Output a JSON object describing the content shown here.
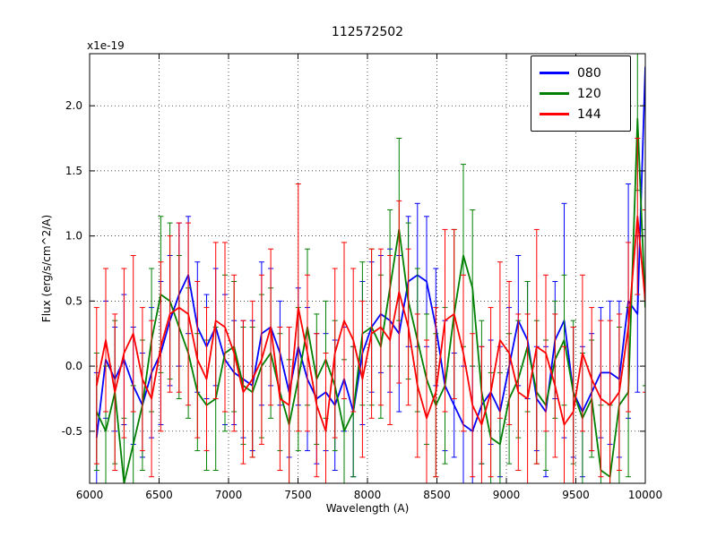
{
  "chart": {
    "title": "112572502",
    "offset_label": "x1e-19",
    "xlabel": "Wavelength (A)",
    "ylabel": "Flux (erg/s/cm^2/A)"
  },
  "chart_data": {
    "type": "line",
    "error_bars": true,
    "title": "112572502",
    "xlabel": "Wavelength (A)",
    "ylabel": "Flux (erg/s/cm^2/A)",
    "y_offset_factor": "x1e-19",
    "grid": true,
    "legend_position": "upper right",
    "xlim": [
      6000,
      10000
    ],
    "ylim": [
      -0.9,
      2.4
    ],
    "x_ticks": [
      6000,
      6500,
      7000,
      7500,
      8000,
      8500,
      9000,
      9500,
      10000
    ],
    "x_tick_labels": [
      "6000",
      "6500",
      "7000",
      "7500",
      "8000",
      "8500",
      "9000",
      "9500",
      "10000"
    ],
    "y_ticks": [
      -0.5,
      0.0,
      0.5,
      1.0,
      1.5,
      2.0
    ],
    "y_tick_labels": [
      "-0.5",
      "0.0",
      "0.5",
      "1.0",
      "1.5",
      "2.0"
    ],
    "x": [
      6050,
      6116,
      6182,
      6248,
      6314,
      6380,
      6446,
      6512,
      6578,
      6644,
      6710,
      6776,
      6842,
      6908,
      6974,
      7040,
      7106,
      7172,
      7238,
      7304,
      7370,
      7436,
      7502,
      7568,
      7634,
      7700,
      7766,
      7832,
      7898,
      7964,
      8030,
      8096,
      8162,
      8228,
      8294,
      8360,
      8426,
      8492,
      8558,
      8624,
      8690,
      8756,
      8822,
      8888,
      8954,
      9020,
      9086,
      9152,
      9218,
      9284,
      9350,
      9416,
      9482,
      9548,
      9614,
      9680,
      9746,
      9812,
      9878,
      9944,
      10000
    ],
    "series": [
      {
        "name": "080",
        "color": "#0000ff",
        "values": [
          -0.55,
          0.05,
          -0.1,
          0.05,
          -0.15,
          -0.3,
          -0.05,
          0.1,
          0.35,
          0.55,
          0.7,
          0.3,
          0.15,
          0.3,
          0.05,
          -0.05,
          -0.1,
          -0.15,
          0.25,
          0.3,
          0.1,
          -0.2,
          0.15,
          -0.1,
          -0.25,
          -0.2,
          -0.3,
          -0.1,
          -0.35,
          0.1,
          0.3,
          0.4,
          0.35,
          0.25,
          0.65,
          0.7,
          0.65,
          0.3,
          -0.15,
          -0.3,
          -0.45,
          -0.5,
          -0.3,
          -0.2,
          -0.35,
          0.0,
          0.35,
          0.2,
          -0.25,
          -0.35,
          0.2,
          0.35,
          -0.2,
          -0.35,
          -0.2,
          -0.05,
          -0.05,
          -0.1,
          0.5,
          0.4,
          2.3
        ],
        "errors": [
          0.5,
          0.45,
          0.4,
          0.5,
          0.45,
          0.4,
          0.5,
          0.55,
          0.5,
          0.55,
          0.45,
          0.5,
          0.4,
          0.45,
          0.5,
          0.4,
          0.45,
          0.5,
          0.55,
          0.45,
          0.4,
          0.5,
          0.45,
          0.55,
          0.5,
          0.45,
          0.5,
          0.4,
          0.5,
          0.55,
          0.5,
          0.45,
          0.55,
          0.6,
          0.5,
          0.55,
          0.5,
          0.45,
          0.5,
          0.4,
          0.45,
          0.5,
          0.45,
          0.4,
          0.5,
          0.45,
          0.5,
          0.45,
          0.4,
          0.5,
          0.45,
          0.9,
          0.5,
          0.5,
          0.45,
          0.5,
          0.55,
          0.6,
          0.9,
          0.6,
          0.8
        ]
      },
      {
        "name": "120",
        "color": "#008000",
        "values": [
          -0.35,
          -0.5,
          -0.2,
          -0.9,
          -0.6,
          -0.3,
          0.2,
          0.55,
          0.5,
          0.3,
          0.1,
          -0.2,
          -0.3,
          -0.25,
          0.1,
          0.15,
          -0.15,
          -0.2,
          0.0,
          0.1,
          -0.2,
          -0.45,
          -0.1,
          0.3,
          -0.1,
          0.05,
          -0.15,
          -0.5,
          -0.35,
          0.25,
          0.3,
          0.15,
          0.6,
          1.05,
          0.5,
          0.2,
          -0.1,
          -0.3,
          -0.15,
          0.4,
          0.85,
          0.6,
          -0.2,
          -0.55,
          -0.6,
          -0.25,
          -0.1,
          0.15,
          -0.2,
          -0.3,
          0.05,
          0.2,
          -0.2,
          -0.4,
          -0.25,
          -0.8,
          -0.85,
          -0.3,
          -0.2,
          1.9,
          0.45
        ],
        "errors": [
          0.45,
          0.5,
          0.55,
          0.5,
          0.45,
          0.5,
          0.55,
          0.6,
          0.6,
          0.55,
          0.5,
          0.45,
          0.5,
          0.55,
          0.6,
          0.5,
          0.45,
          0.5,
          0.55,
          0.5,
          0.45,
          0.5,
          0.55,
          0.6,
          0.5,
          0.45,
          0.5,
          0.55,
          0.5,
          0.55,
          0.6,
          0.55,
          0.6,
          0.7,
          0.6,
          0.55,
          0.5,
          0.55,
          0.6,
          0.65,
          0.7,
          0.6,
          0.55,
          0.5,
          0.55,
          0.5,
          0.45,
          0.5,
          0.55,
          0.5,
          0.45,
          0.5,
          0.55,
          0.5,
          0.45,
          0.5,
          0.55,
          0.6,
          0.65,
          0.55,
          0.6
        ]
      },
      {
        "name": "144",
        "color": "#ff0000",
        "values": [
          -0.15,
          0.2,
          -0.2,
          0.1,
          0.25,
          -0.1,
          -0.25,
          0.15,
          0.4,
          0.45,
          0.4,
          0.05,
          -0.1,
          0.35,
          0.3,
          0.1,
          -0.2,
          -0.1,
          0.05,
          0.3,
          -0.25,
          -0.3,
          0.45,
          0.1,
          -0.3,
          -0.5,
          0.1,
          0.35,
          0.2,
          -0.1,
          0.25,
          0.3,
          0.2,
          0.57,
          0.3,
          -0.15,
          -0.4,
          -0.2,
          0.35,
          0.4,
          0.1,
          -0.3,
          -0.45,
          -0.2,
          0.2,
          0.1,
          -0.2,
          -0.25,
          0.15,
          0.1,
          -0.15,
          -0.45,
          -0.35,
          0.1,
          -0.1,
          -0.25,
          -0.3,
          -0.2,
          0.3,
          1.15,
          0.5
        ],
        "errors": [
          0.6,
          0.55,
          0.6,
          0.65,
          0.6,
          0.55,
          0.6,
          0.65,
          0.6,
          0.65,
          0.7,
          0.6,
          0.55,
          0.6,
          0.65,
          0.6,
          0.55,
          0.6,
          0.65,
          0.6,
          0.55,
          0.6,
          0.95,
          0.6,
          0.55,
          0.6,
          0.65,
          0.6,
          0.55,
          0.6,
          0.65,
          0.6,
          0.65,
          0.7,
          0.6,
          0.55,
          0.6,
          0.65,
          0.7,
          0.65,
          0.6,
          0.55,
          0.6,
          0.65,
          0.6,
          0.55,
          0.6,
          0.65,
          0.9,
          0.6,
          0.55,
          0.6,
          0.65,
          0.6,
          0.55,
          0.6,
          0.65,
          0.6,
          0.65,
          0.6,
          0.7
        ]
      }
    ]
  }
}
